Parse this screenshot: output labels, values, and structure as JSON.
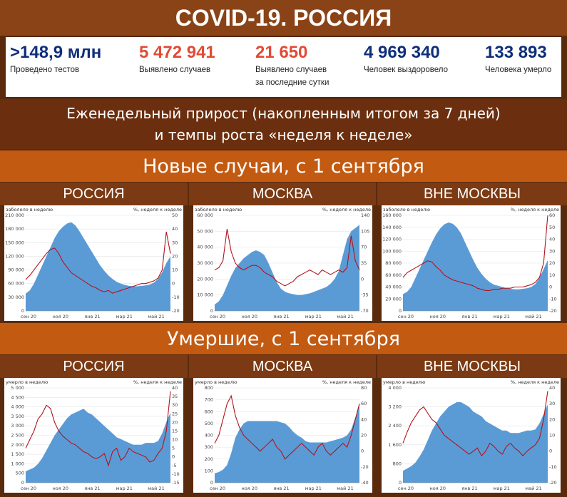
{
  "title": "COVID-19. РОССИЯ",
  "stats": [
    {
      "value": ">148,9 млн",
      "label": "Проведено тестов",
      "label2": "",
      "color": "#0f2f7a"
    },
    {
      "value": "5 472 941",
      "label": "Выявлено случаев",
      "label2": "",
      "color": "#e24a34"
    },
    {
      "value": "21 650",
      "label": "Выявлено случаев",
      "label2": "за последние сутки",
      "color": "#e24a34"
    },
    {
      "value": "4 969 340",
      "label": "Человек выздоровело",
      "label2": "",
      "color": "#0f2f7a"
    },
    {
      "value": "133 893",
      "label": "Человека умерло",
      "label2": "",
      "color": "#0f2f7a"
    }
  ],
  "weekly": {
    "line1": "Еженедельный прирост (накопленным итогом за 7 дней)",
    "line2": "и темпы роста «неделя к неделе»"
  },
  "section_cases": "Новые случаи, с 1 сентября",
  "section_deaths": "Умершие, с 1 сентября",
  "panel_titles": [
    "РОССИЯ",
    "МОСКВА",
    "ВНЕ МОСКВЫ"
  ],
  "colors": {
    "area": "#5b9bd5",
    "line": "#b0151d"
  },
  "chart_data": [
    {
      "id": "cases-russia",
      "type": "area",
      "ylabel": "заболело в неделю",
      "y2label": "%, неделя к неделе",
      "ylim": [
        0,
        210000
      ],
      "y2lim": [
        -20,
        50
      ],
      "yticks": [
        "0",
        "30 000",
        "60 000",
        "90 000",
        "120 000",
        "150 000",
        "180 000",
        "210 000"
      ],
      "y2ticks": [
        "-20",
        "-10",
        "0",
        "10",
        "20",
        "30",
        "40",
        "50"
      ],
      "xticks": [
        "сен 20",
        "ноя 20",
        "янв 21",
        "мар 21",
        "май 21"
      ],
      "series": [
        {
          "kind": "area",
          "values": [
            38000,
            45000,
            60000,
            80000,
            100000,
            120000,
            140000,
            160000,
            175000,
            185000,
            192000,
            195000,
            188000,
            175000,
            160000,
            145000,
            130000,
            115000,
            100000,
            88000,
            78000,
            70000,
            64000,
            60000,
            57000,
            55000,
            54000,
            54000,
            55000,
            56000,
            58000,
            62000,
            70000,
            85000,
            105000,
            120000
          ]
        },
        {
          "kind": "line",
          "values": [
            3,
            6,
            10,
            14,
            18,
            22,
            25,
            26,
            22,
            16,
            12,
            8,
            6,
            4,
            2,
            0,
            -2,
            -3,
            -5,
            -6,
            -5,
            -7,
            -6,
            -5,
            -4,
            -3,
            -2,
            -1,
            0,
            0,
            1,
            2,
            4,
            10,
            38,
            22
          ]
        }
      ]
    },
    {
      "id": "cases-moscow",
      "type": "area",
      "ylabel": "заболело в неделю",
      "y2label": "%, неделя к неделе",
      "ylim": [
        0,
        60000
      ],
      "y2lim": [
        -70,
        140
      ],
      "yticks": [
        "0",
        "10 000",
        "20 000",
        "30 000",
        "40 000",
        "50 000",
        "60 000"
      ],
      "y2ticks": [
        "-70",
        "-35",
        "0",
        "35",
        "70",
        "105",
        "140"
      ],
      "xticks": [
        "сен 20",
        "ноя 20",
        "янв 21",
        "мар 21",
        "май 21"
      ],
      "series": [
        {
          "kind": "area",
          "values": [
            4000,
            6000,
            10000,
            16000,
            22000,
            27000,
            30000,
            33000,
            35000,
            37000,
            38000,
            37000,
            35000,
            30000,
            24000,
            18000,
            14000,
            12000,
            11000,
            10500,
            10000,
            10000,
            10500,
            11000,
            12000,
            13000,
            14000,
            15000,
            17000,
            20000,
            25000,
            35000,
            45000,
            50000,
            52000,
            54000
          ]
        },
        {
          "kind": "line",
          "values": [
            20,
            25,
            40,
            110,
            60,
            35,
            25,
            20,
            25,
            30,
            30,
            25,
            15,
            10,
            5,
            -5,
            -10,
            -15,
            -10,
            -5,
            5,
            10,
            15,
            20,
            15,
            10,
            20,
            15,
            10,
            15,
            20,
            15,
            25,
            95,
            40,
            20
          ]
        }
      ]
    },
    {
      "id": "cases-outside",
      "type": "area",
      "ylabel": "заболело в неделю",
      "y2label": "%, неделя к неделе",
      "ylim": [
        0,
        160000
      ],
      "y2lim": [
        -20,
        60
      ],
      "yticks": [
        "0",
        "20 000",
        "40 000",
        "60 000",
        "80 000",
        "100 000",
        "120 000",
        "140 000",
        "160 000"
      ],
      "y2ticks": [
        "-20",
        "-10",
        "0",
        "10",
        "20",
        "30",
        "40",
        "50",
        "60"
      ],
      "xticks": [
        "сен 20",
        "ноя 20",
        "янв 21",
        "мар 21",
        "май 21"
      ],
      "series": [
        {
          "kind": "area",
          "values": [
            28000,
            32000,
            40000,
            55000,
            70000,
            85000,
            100000,
            115000,
            128000,
            138000,
            145000,
            148000,
            146000,
            140000,
            130000,
            115000,
            100000,
            85000,
            72000,
            62000,
            54000,
            48000,
            44000,
            42000,
            40000,
            38000,
            37000,
            36000,
            36000,
            37000,
            38000,
            40000,
            45000,
            55000,
            70000,
            85000
          ]
        },
        {
          "kind": "line",
          "values": [
            8,
            12,
            14,
            16,
            18,
            20,
            22,
            21,
            17,
            14,
            10,
            8,
            6,
            5,
            4,
            3,
            2,
            1,
            -1,
            -2,
            -3,
            -3,
            -2,
            -2,
            -1,
            -1,
            -1,
            0,
            0,
            0,
            1,
            2,
            4,
            8,
            20,
            60
          ]
        }
      ]
    },
    {
      "id": "deaths-russia",
      "type": "area",
      "ylabel": "умерло в неделю",
      "y2label": "%, неделя к неделе",
      "ylim": [
        0,
        5000
      ],
      "y2lim": [
        -15,
        40
      ],
      "yticks": [
        "0",
        "500",
        "1 000",
        "1 500",
        "2 000",
        "2 500",
        "3 000",
        "3 500",
        "4 000",
        "4 500",
        "5 000"
      ],
      "y2ticks": [
        "-15",
        "-10",
        "-5",
        "0",
        "5",
        "10",
        "15",
        "20",
        "25",
        "30",
        "35",
        "40"
      ],
      "xticks": [
        "сен 20",
        "ноя 20",
        "янв 21",
        "мар 21",
        "май 21"
      ],
      "series": [
        {
          "kind": "area",
          "values": [
            600,
            700,
            800,
            1000,
            1300,
            1700,
            2100,
            2500,
            2800,
            3100,
            3400,
            3600,
            3700,
            3800,
            3900,
            3700,
            3600,
            3400,
            3200,
            3000,
            2800,
            2600,
            2400,
            2300,
            2200,
            2100,
            2000,
            2000,
            2000,
            2100,
            2100,
            2100,
            2200,
            2600,
            3200,
            3700
          ]
        },
        {
          "kind": "line",
          "values": [
            5,
            10,
            15,
            22,
            25,
            30,
            28,
            20,
            15,
            12,
            10,
            8,
            7,
            5,
            3,
            2,
            0,
            -1,
            0,
            2,
            -5,
            3,
            5,
            -2,
            0,
            5,
            3,
            2,
            1,
            0,
            -3,
            -2,
            2,
            5,
            15,
            38
          ]
        }
      ]
    },
    {
      "id": "deaths-moscow",
      "type": "area",
      "ylabel": "умерло в неделю",
      "y2label": "%, неделя к неделе",
      "ylim": [
        0,
        800
      ],
      "y2lim": [
        -40,
        80
      ],
      "yticks": [
        "0",
        "100",
        "200",
        "300",
        "400",
        "500",
        "600",
        "700",
        "800"
      ],
      "y2ticks": [
        "-40",
        "-20",
        "0",
        "20",
        "40",
        "60",
        "80"
      ],
      "xticks": [
        "сен 20",
        "ноя 20",
        "янв 21",
        "мар 21",
        "май 21"
      ],
      "series": [
        {
          "kind": "area",
          "values": [
            80,
            90,
            110,
            150,
            250,
            380,
            450,
            500,
            520,
            520,
            520,
            520,
            520,
            520,
            520,
            520,
            510,
            500,
            470,
            430,
            400,
            380,
            350,
            340,
            340,
            340,
            340,
            340,
            350,
            360,
            370,
            380,
            400,
            450,
            550,
            650
          ]
        },
        {
          "kind": "line",
          "values": [
            10,
            20,
            40,
            60,
            70,
            45,
            30,
            20,
            15,
            10,
            5,
            0,
            5,
            10,
            15,
            5,
            0,
            -10,
            -5,
            0,
            5,
            10,
            5,
            0,
            -5,
            5,
            10,
            0,
            -5,
            0,
            5,
            10,
            5,
            20,
            40,
            60
          ]
        }
      ]
    },
    {
      "id": "deaths-outside",
      "type": "area",
      "ylabel": "умерло в неделю",
      "y2label": "%, неделя к неделе",
      "ylim": [
        0,
        4000
      ],
      "y2lim": [
        -20,
        40
      ],
      "yticks": [
        "0",
        "800",
        "1 600",
        "2 400",
        "3 200",
        "4 000"
      ],
      "y2ticks": [
        "-20",
        "-10",
        "0",
        "10",
        "20",
        "30",
        "40"
      ],
      "xticks": [
        "сен 20",
        "ноя 20",
        "янв 21",
        "мар 21",
        "май 21"
      ],
      "series": [
        {
          "kind": "area",
          "values": [
            500,
            600,
            700,
            850,
            1100,
            1400,
            1800,
            2200,
            2500,
            2800,
            3000,
            3200,
            3300,
            3400,
            3400,
            3300,
            3200,
            3000,
            2900,
            2800,
            2600,
            2500,
            2400,
            2300,
            2200,
            2200,
            2100,
            2100,
            2100,
            2150,
            2200,
            2200,
            2250,
            2500,
            2900,
            3300
          ]
        },
        {
          "kind": "line",
          "values": [
            5,
            12,
            18,
            22,
            26,
            28,
            24,
            20,
            18,
            14,
            10,
            8,
            6,
            4,
            2,
            0,
            -2,
            0,
            2,
            -3,
            0,
            5,
            3,
            0,
            -2,
            3,
            5,
            2,
            0,
            -3,
            0,
            2,
            4,
            8,
            20,
            38
          ]
        }
      ]
    }
  ]
}
